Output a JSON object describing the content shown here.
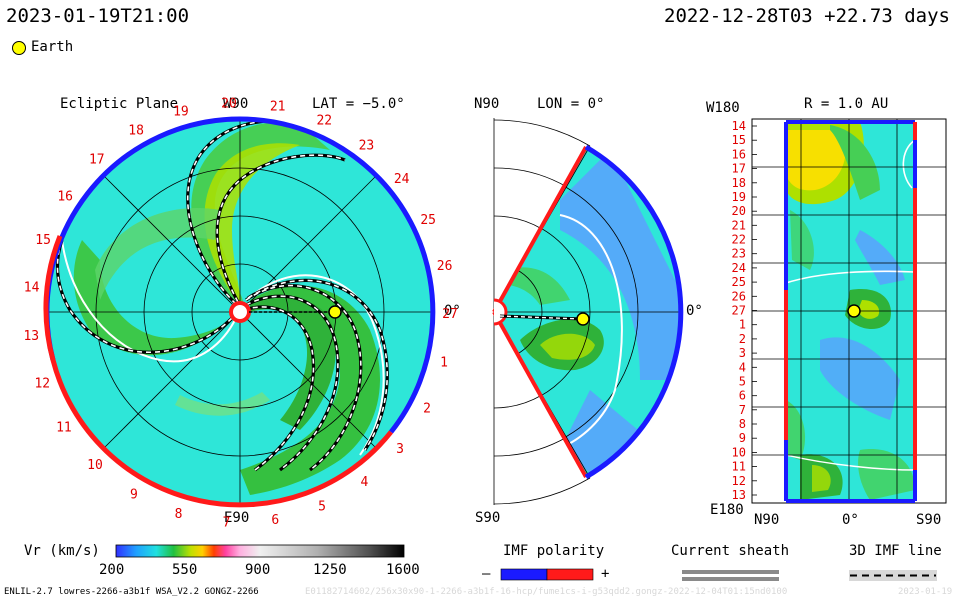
{
  "header": {
    "model_time": "2023-01-19T21:00",
    "ref_time": "2022-12-28T03 +22.73 days"
  },
  "legend": {
    "earth_label": "Earth"
  },
  "panel_ecliptic": {
    "title": "Ecliptic Plane",
    "top_label": "W90",
    "bottom_label": "E90",
    "right_label": "0°",
    "lat_label": "LAT = −5.0°",
    "rim_numbers": [
      "20",
      "21",
      "22",
      "23",
      "24",
      "25",
      "26",
      "27",
      "1",
      "2",
      "3",
      "4",
      "5",
      "6",
      "7",
      "8",
      "9",
      "10",
      "11",
      "12",
      "13",
      "14",
      "15",
      "16",
      "17",
      "18",
      "19"
    ]
  },
  "panel_meridional": {
    "top_label": "N90",
    "lon_label": "LON = 0°",
    "bottom_label": "S90",
    "right_label": "0°"
  },
  "panel_map": {
    "top_left": "W180",
    "r_label": "R = 1.0 AU",
    "bottom_left": "E180",
    "x_labels": [
      "N90",
      "0°",
      "S90"
    ],
    "rows": [
      "14",
      "15",
      "16",
      "17",
      "18",
      "19",
      "20",
      "21",
      "22",
      "23",
      "24",
      "25",
      "26",
      "27",
      "1",
      "2",
      "3",
      "4",
      "5",
      "6",
      "7",
      "8",
      "9",
      "10",
      "11",
      "12",
      "13"
    ]
  },
  "colorbar": {
    "label": "Vr (km/s)",
    "ticks": [
      "200",
      "550",
      "900",
      "1250",
      "1600"
    ]
  },
  "imf_polarity": {
    "label": "IMF polarity",
    "minus": "–",
    "plus": "+"
  },
  "current_sheath": {
    "label": "Current sheath"
  },
  "imf_line": {
    "label": "3D IMF line"
  },
  "footer": {
    "model_info": "ENLIL-2.7 lowres-2266-a3b1f WSA_V2.2 GONGZ-2266",
    "run_info": "E01182714602/256x30x90-1-2266-a3b1f-16-hcp/fume1cs-i-g53qdd2.gongz-2022-12-04T01:15nd0100",
    "run_date": "2023-01-19"
  },
  "colors": {
    "bg_cyan": "#2ee6d8",
    "green": "#2ec432",
    "yellowgreen": "#aee000",
    "blue_polarity": "#1a1aff",
    "red_polarity": "#ff1a1a",
    "earth": "#ffff00",
    "rim_text": "#e00000"
  }
}
